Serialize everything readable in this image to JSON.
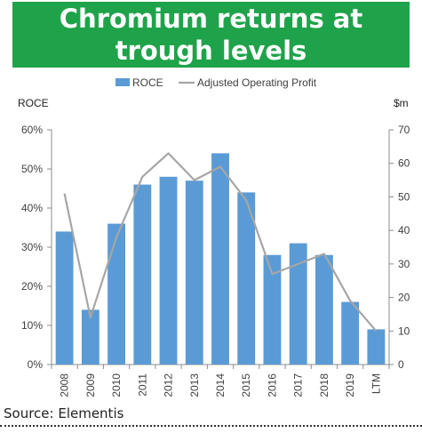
{
  "title": "Chromium returns at trough levels",
  "source": "Source: Elementis",
  "colors": {
    "banner": "#1fa34a",
    "bar": "#5b9bd5",
    "line": "#a6a6a6",
    "axis": "#8c8c8c",
    "text": "#404040"
  },
  "chart_data": {
    "type": "bar",
    "categories": [
      "2008",
      "2009",
      "2010",
      "2011",
      "2012",
      "2013",
      "2014",
      "2015",
      "2016",
      "2017",
      "2018",
      "2019",
      "LTM"
    ],
    "series": [
      {
        "name": "ROCE",
        "type": "bar",
        "axis": "left",
        "values": [
          34,
          14,
          36,
          46,
          48,
          47,
          54,
          44,
          28,
          31,
          28,
          16,
          9
        ]
      },
      {
        "name": "Adjusted Operating Profit",
        "type": "line",
        "axis": "right",
        "values": [
          51,
          14,
          38,
          56,
          63,
          55,
          59,
          49,
          27,
          30,
          33,
          19,
          10
        ]
      }
    ],
    "ylabel_left": "ROCE",
    "ylabel_right": "$m",
    "ylim_left": [
      0,
      60
    ],
    "yticks_left": [
      "0%",
      "10%",
      "20%",
      "30%",
      "40%",
      "50%",
      "60%"
    ],
    "ylim_right": [
      0,
      70
    ],
    "yticks_right": [
      "0",
      "10",
      "20",
      "30",
      "40",
      "50",
      "60",
      "70"
    ],
    "legend_position": "top-center",
    "grid": false
  }
}
